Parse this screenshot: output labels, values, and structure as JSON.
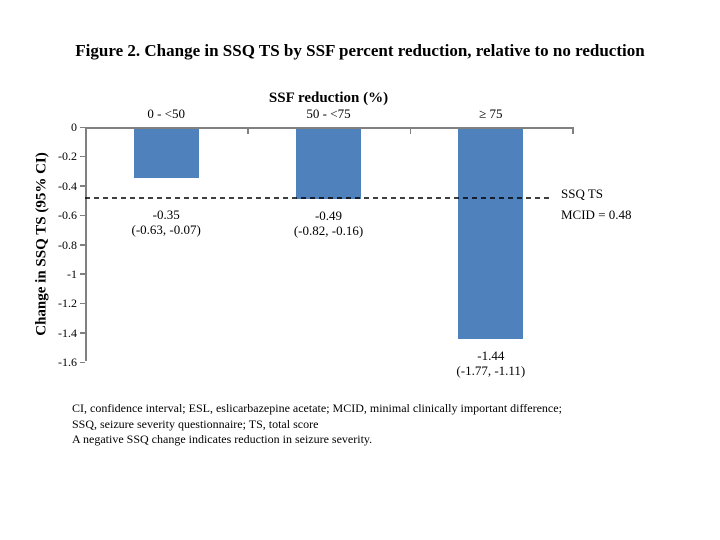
{
  "title": "Figure 2. Change in SSQ TS by SSF percent reduction, relative to no reduction",
  "chart_data": {
    "type": "bar",
    "title": "Figure 2. Change in SSQ TS by SSF percent reduction, relative to no reduction",
    "x_axis_title": "SSF reduction (%)",
    "y_axis_label": "Change in SSQ TS (95% CI)",
    "categories": [
      "0 - <50",
      "50 - <75",
      "≥ 75"
    ],
    "values": [
      -0.35,
      -0.49,
      -1.44
    ],
    "ci_low": [
      -0.63,
      -0.82,
      -1.77
    ],
    "ci_high": [
      -0.07,
      -0.16,
      -1.11
    ],
    "point_labels": [
      {
        "value": "-0.35",
        "ci": "(-0.63, -0.07)"
      },
      {
        "value": "-0.49",
        "ci": "(-0.82, -0.16)"
      },
      {
        "value": "-1.44",
        "ci": "(-1.77, -1.11)"
      }
    ],
    "ylim": [
      -1.6,
      0
    ],
    "y_ticks": [
      {
        "value": 0,
        "label": "0"
      },
      {
        "value": -0.2,
        "label": "-0.2"
      },
      {
        "value": -0.4,
        "label": "-0.4"
      },
      {
        "value": -0.6,
        "label": "-0.6"
      },
      {
        "value": -0.8,
        "label": "-0.8"
      },
      {
        "value": -1,
        "label": "-1"
      },
      {
        "value": -1.2,
        "label": "-1.2"
      },
      {
        "value": -1.4,
        "label": "-1.4"
      },
      {
        "value": -1.6,
        "label": "-1.6"
      }
    ],
    "grid": false,
    "legend": false,
    "bar_color": "#4F81BD",
    "axis_color": "#808080",
    "reference_line": {
      "value": -0.48,
      "style": "dashed",
      "color": "#000000",
      "label_line1": "SSQ TS",
      "label_line2": "MCID = 0.48"
    }
  },
  "footnotes": [
    "CI, confidence interval; ESL, eslicarbazepine acetate; MCID, minimal clinically important difference;",
    "SSQ, seizure severity questionnaire; TS, total score",
    "A negative SSQ change indicates reduction in seizure severity."
  ]
}
